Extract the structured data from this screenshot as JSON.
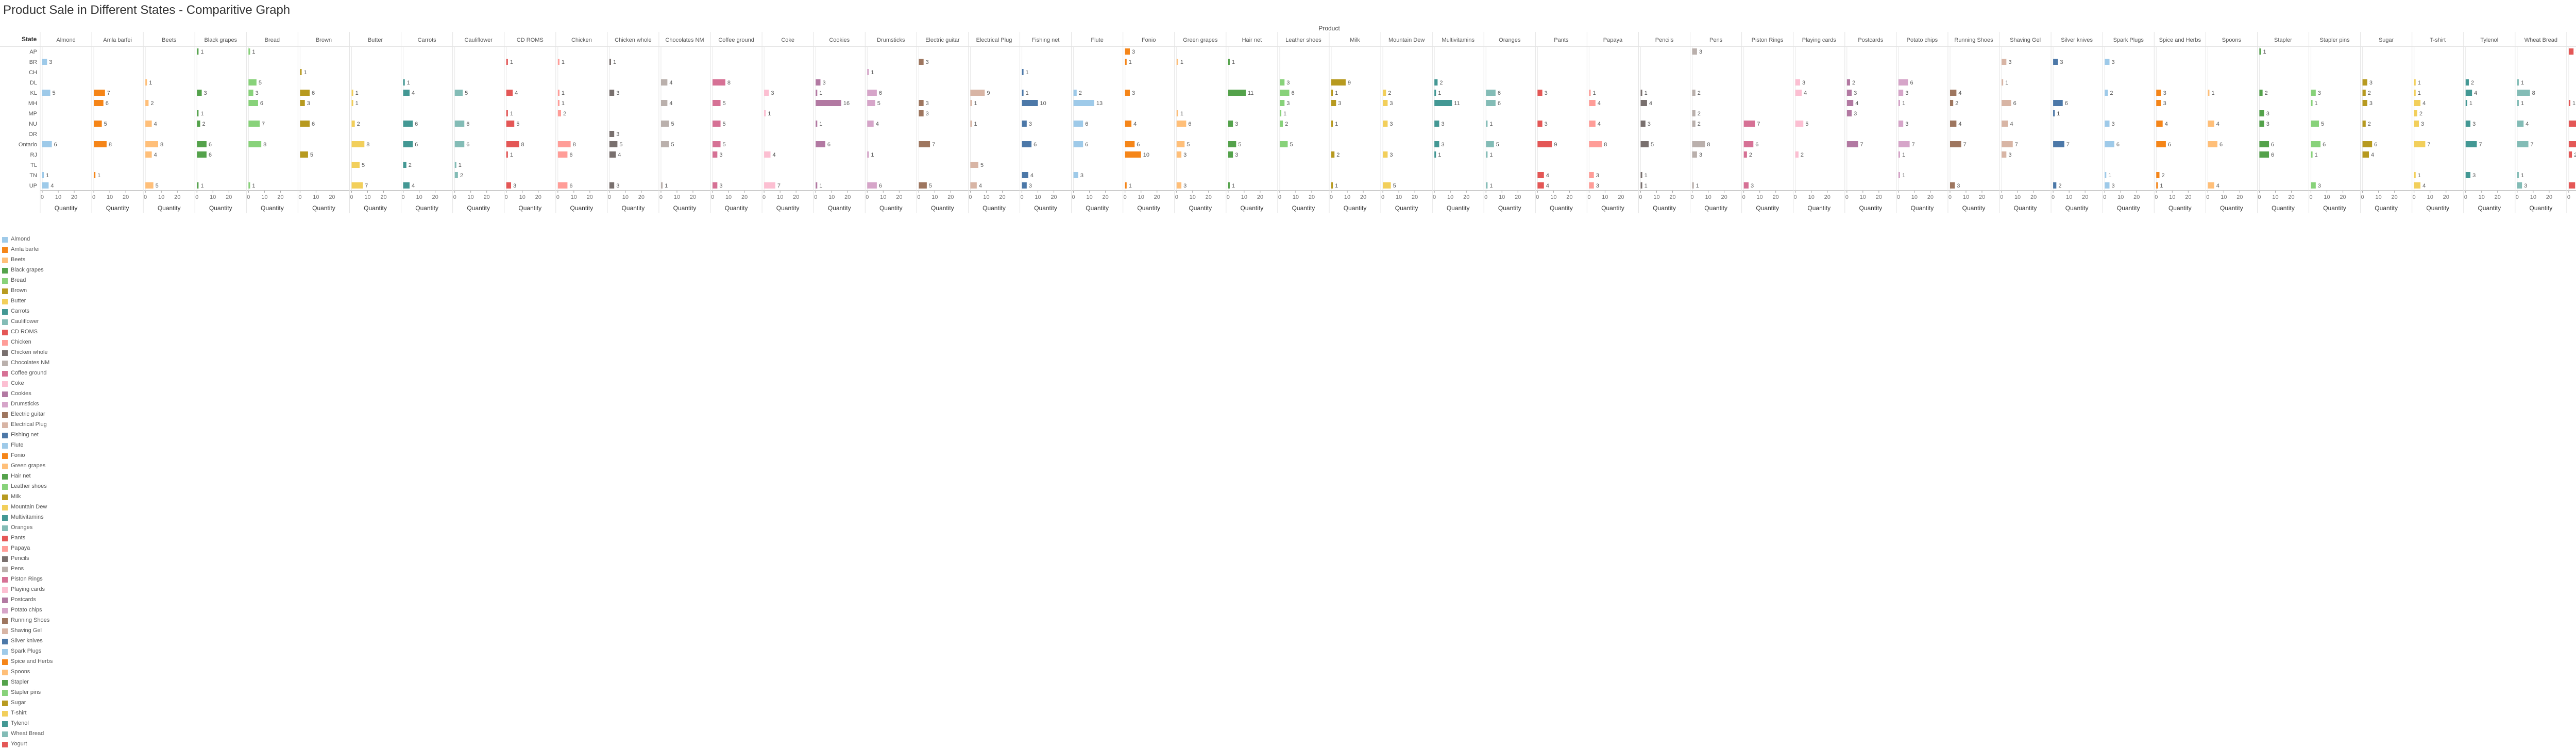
{
  "title": "Product Sale in Different States - Comparitive Graph",
  "colors": {
    "Almond": "#9ecae9",
    "Amla barfei": "#f58518",
    "Beets": "#ffbf79",
    "Black grapes": "#54a24b",
    "Bread": "#88d27a",
    "Brown": "#b79a20",
    "Butter": "#f2cf5b",
    "Carrots": "#439894",
    "Cauliflower": "#83bcb6",
    "CD ROMS": "#e45756",
    "Chicken": "#ff9d98",
    "Chicken whole": "#79706e",
    "Chocolates NM": "#bab0ac",
    "Coffee ground": "#d67195",
    "Coke": "#fcbfd2",
    "Cookies": "#b279a2",
    "Drumsticks": "#d6a5c9",
    "Electric guitar": "#9e765f",
    "Electrical Plug": "#d8b5a5",
    "Fishing net": "#4c78a8",
    "Flute": "#9ecae9",
    "Fonio": "#f58518",
    "Green grapes": "#ffbf79",
    "Hair net": "#54a24b",
    "Leather shoes": "#88d27a",
    "Milk": "#b79a20",
    "Mountain Dew": "#f2cf5b",
    "Multivitamins": "#439894",
    "Oranges": "#83bcb6",
    "Pants": "#e45756",
    "Papaya": "#ff9d98",
    "Pencils": "#79706e",
    "Pens": "#bab0ac",
    "Piston Rings": "#d67195",
    "Playing cards": "#fcbfd2",
    "Postcards": "#b279a2",
    "Potato chips": "#d6a5c9",
    "Running Shoes": "#9e765f",
    "Shaving Gel": "#d8b5a5",
    "Silver knives": "#4c78a8",
    "Spark Plugs": "#9ecae9",
    "Spice and Herbs": "#f58518",
    "Spoons": "#ffbf79",
    "Stapler": "#54a24b",
    "Stapler pins": "#88d27a",
    "Sugar": "#b79a20",
    "T-shirt": "#f2cf5b",
    "Tylenol": "#439894",
    "Wheat Bread": "#83bcb6",
    "Yogurt": "#e45756"
  },
  "chart_data": {
    "type": "bar",
    "title": "Product Sale in Different States - Comparitive Graph",
    "column_header": "Product",
    "row_header": "State",
    "xlabel": "Quantity",
    "xlim": [
      0,
      20
    ],
    "x_ticks": [
      "0",
      "10",
      "20"
    ],
    "legend_position": "bottom-left",
    "products": [
      "Almond",
      "Amla barfei",
      "Beets",
      "Black grapes",
      "Bread",
      "Brown",
      "Butter",
      "Carrots",
      "Cauliflower",
      "CD ROMS",
      "Chicken",
      "Chicken whole",
      "Chocolates NM",
      "Coffee ground",
      "Coke",
      "Cookies",
      "Drumsticks",
      "Electric guitar",
      "Electrical Plug",
      "Fishing net",
      "Flute",
      "Fonio",
      "Green grapes",
      "Hair net",
      "Leather shoes",
      "Milk",
      "Mountain Dew",
      "Multivitamins",
      "Oranges",
      "Pants",
      "Papaya",
      "Pencils",
      "Pens",
      "Piston Rings",
      "Playing cards",
      "Postcards",
      "Potato chips",
      "Running Shoes",
      "Shaving Gel",
      "Silver knives",
      "Spark Plugs",
      "Spice and Herbs",
      "Spoons",
      "Stapler",
      "Stapler pins",
      "Sugar",
      "T-shirt",
      "Tylenol",
      "Wheat Bread",
      "Yogurt"
    ],
    "states": [
      "AP",
      "BR",
      "CH",
      "DL",
      "KL",
      "MH",
      "MP",
      "NU",
      "OR",
      "Ontario",
      "RJ",
      "TL",
      "TN",
      "UP"
    ],
    "values": {
      "Almond": [
        null,
        3,
        null,
        null,
        5,
        null,
        null,
        null,
        null,
        6,
        null,
        null,
        1,
        4
      ],
      "Amla barfei": [
        null,
        null,
        null,
        null,
        7,
        6,
        null,
        5,
        null,
        8,
        null,
        null,
        1,
        null
      ],
      "Beets": [
        null,
        null,
        null,
        1,
        null,
        2,
        null,
        4,
        null,
        8,
        4,
        null,
        null,
        5
      ],
      "Black grapes": [
        1,
        null,
        null,
        null,
        3,
        null,
        1,
        2,
        null,
        6,
        6,
        null,
        null,
        1
      ],
      "Bread": [
        1,
        null,
        null,
        5,
        3,
        6,
        null,
        7,
        null,
        8,
        null,
        null,
        null,
        1
      ],
      "Brown": [
        null,
        null,
        1,
        null,
        6,
        3,
        null,
        6,
        null,
        null,
        5,
        null,
        null,
        null
      ],
      "Butter": [
        null,
        null,
        null,
        null,
        1,
        1,
        null,
        2,
        null,
        8,
        null,
        5,
        null,
        7
      ],
      "Carrots": [
        null,
        null,
        null,
        1,
        4,
        null,
        null,
        6,
        null,
        6,
        null,
        2,
        null,
        4
      ],
      "Cauliflower": [
        null,
        null,
        null,
        null,
        5,
        null,
        null,
        6,
        null,
        6,
        null,
        1,
        2,
        null
      ],
      "CD ROMS": [
        null,
        1,
        null,
        null,
        4,
        null,
        1,
        5,
        null,
        8,
        1,
        null,
        null,
        3
      ],
      "Chicken": [
        null,
        1,
        null,
        null,
        1,
        1,
        2,
        null,
        null,
        8,
        6,
        null,
        null,
        6
      ],
      "Chicken whole": [
        null,
        1,
        null,
        null,
        3,
        null,
        null,
        null,
        3,
        5,
        4,
        null,
        null,
        3
      ],
      "Chocolates NM": [
        null,
        null,
        null,
        4,
        null,
        4,
        null,
        5,
        null,
        5,
        null,
        null,
        null,
        1
      ],
      "Coffee ground": [
        null,
        null,
        null,
        8,
        null,
        5,
        null,
        5,
        null,
        5,
        3,
        null,
        null,
        3
      ],
      "Coke": [
        null,
        null,
        null,
        null,
        3,
        null,
        1,
        null,
        null,
        null,
        4,
        null,
        null,
        7
      ],
      "Cookies": [
        null,
        null,
        null,
        3,
        1,
        16,
        null,
        1,
        null,
        6,
        null,
        null,
        null,
        1
      ],
      "Drumsticks": [
        null,
        null,
        1,
        null,
        6,
        5,
        null,
        4,
        null,
        null,
        1,
        null,
        null,
        6
      ],
      "Electric guitar": [
        null,
        3,
        null,
        null,
        null,
        3,
        3,
        null,
        null,
        7,
        null,
        null,
        null,
        5
      ],
      "Electrical Plug": [
        null,
        null,
        null,
        null,
        9,
        1,
        null,
        1,
        null,
        null,
        null,
        5,
        null,
        4
      ],
      "Fishing net": [
        null,
        null,
        1,
        null,
        1,
        10,
        null,
        3,
        null,
        6,
        null,
        null,
        4,
        3
      ],
      "Flute": [
        null,
        null,
        null,
        null,
        2,
        13,
        null,
        6,
        null,
        6,
        null,
        null,
        3,
        null
      ],
      "Fonio": [
        3,
        1,
        null,
        null,
        3,
        null,
        null,
        4,
        null,
        6,
        10,
        null,
        null,
        1
      ],
      "Green grapes": [
        null,
        1,
        null,
        null,
        null,
        null,
        1,
        6,
        null,
        5,
        3,
        null,
        null,
        3
      ],
      "Hair net": [
        null,
        1,
        null,
        null,
        11,
        null,
        null,
        3,
        null,
        5,
        3,
        null,
        null,
        1
      ],
      "Leather shoes": [
        null,
        null,
        null,
        3,
        6,
        3,
        1,
        2,
        null,
        5,
        null,
        null,
        null,
        null
      ],
      "Milk": [
        null,
        null,
        null,
        9,
        1,
        3,
        null,
        1,
        null,
        null,
        2,
        null,
        null,
        1
      ],
      "Mountain Dew": [
        null,
        null,
        null,
        null,
        2,
        3,
        null,
        3,
        null,
        null,
        3,
        null,
        null,
        5
      ],
      "Multivitamins": [
        null,
        null,
        null,
        2,
        1,
        11,
        null,
        3,
        null,
        3,
        1,
        null,
        null,
        null
      ],
      "Oranges": [
        null,
        null,
        null,
        null,
        6,
        6,
        null,
        1,
        null,
        5,
        1,
        null,
        null,
        1
      ],
      "Pants": [
        null,
        null,
        null,
        null,
        3,
        null,
        null,
        3,
        null,
        9,
        null,
        null,
        4,
        4
      ],
      "Papaya": [
        null,
        null,
        null,
        null,
        1,
        4,
        null,
        4,
        null,
        8,
        null,
        null,
        3,
        3
      ],
      "Pencils": [
        null,
        null,
        null,
        null,
        1,
        4,
        null,
        3,
        null,
        5,
        null,
        null,
        1,
        1
      ],
      "Pens": [
        3,
        null,
        null,
        null,
        2,
        null,
        2,
        2,
        null,
        8,
        3,
        null,
        null,
        1
      ],
      "Piston Rings": [
        null,
        null,
        null,
        null,
        null,
        null,
        null,
        7,
        null,
        6,
        2,
        null,
        null,
        3
      ],
      "Playing cards": [
        null,
        null,
        null,
        3,
        4,
        null,
        null,
        5,
        null,
        null,
        2,
        null,
        null,
        null
      ],
      "Postcards": [
        null,
        null,
        null,
        2,
        3,
        4,
        3,
        null,
        null,
        7,
        null,
        null,
        null,
        null
      ],
      "Potato chips": [
        null,
        null,
        null,
        6,
        3,
        1,
        null,
        3,
        null,
        7,
        1,
        null,
        1,
        null
      ],
      "Running Shoes": [
        null,
        null,
        null,
        null,
        4,
        2,
        null,
        4,
        null,
        7,
        null,
        null,
        null,
        3
      ],
      "Shaving Gel": [
        null,
        3,
        null,
        1,
        null,
        6,
        null,
        4,
        null,
        7,
        3,
        null,
        null,
        null
      ],
      "Silver knives": [
        null,
        3,
        null,
        null,
        null,
        6,
        1,
        null,
        null,
        7,
        null,
        null,
        null,
        2
      ],
      "Spark Plugs": [
        null,
        3,
        null,
        null,
        2,
        null,
        null,
        3,
        null,
        6,
        null,
        null,
        1,
        3
      ],
      "Spice and Herbs": [
        null,
        null,
        null,
        null,
        3,
        3,
        null,
        4,
        null,
        6,
        null,
        null,
        2,
        1
      ],
      "Spoons": [
        null,
        null,
        null,
        null,
        1,
        null,
        null,
        4,
        null,
        6,
        null,
        null,
        null,
        4
      ],
      "Stapler": [
        1,
        null,
        null,
        null,
        2,
        null,
        3,
        3,
        null,
        6,
        6,
        null,
        null,
        null
      ],
      "Stapler pins": [
        null,
        null,
        null,
        null,
        3,
        1,
        null,
        5,
        null,
        6,
        1,
        null,
        null,
        3
      ],
      "Sugar": [
        null,
        null,
        null,
        3,
        2,
        3,
        null,
        2,
        null,
        6,
        4,
        null,
        null,
        null
      ],
      "T-shirt": [
        null,
        null,
        null,
        1,
        1,
        4,
        2,
        3,
        null,
        7,
        null,
        null,
        1,
        4
      ],
      "Tylenol": [
        null,
        null,
        null,
        2,
        4,
        1,
        null,
        3,
        null,
        7,
        null,
        null,
        3,
        null
      ],
      "Wheat Bread": [
        null,
        null,
        null,
        1,
        8,
        1,
        null,
        4,
        null,
        7,
        null,
        null,
        1,
        3
      ],
      "Yogurt": [
        3,
        null,
        null,
        null,
        null,
        1,
        null,
        5,
        null,
        7,
        2,
        null,
        null,
        4
      ]
    }
  }
}
